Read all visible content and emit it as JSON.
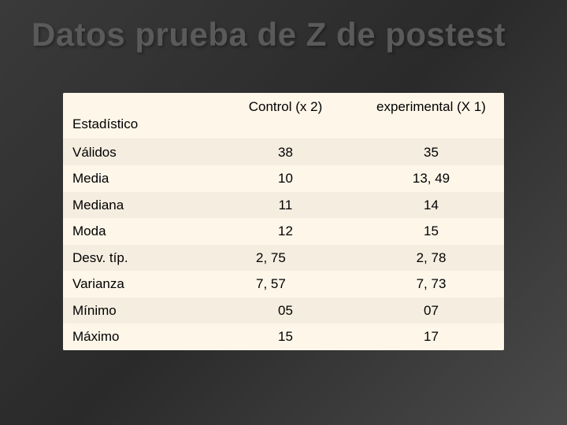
{
  "title": "Datos prueba de Z de postest",
  "table": {
    "headers": {
      "stat": "Estadístico",
      "control": "Control (x 2)",
      "experimental": "experimental (X 1)"
    },
    "rows": [
      {
        "label": "Válidos",
        "control": "38",
        "experimental": "35",
        "controlLeftAlign": false
      },
      {
        "label": "Media",
        "control": "10",
        "experimental": "13, 49",
        "controlLeftAlign": false
      },
      {
        "label": "Mediana",
        "control": "11",
        "experimental": "14",
        "controlLeftAlign": false
      },
      {
        "label": "Moda",
        "control": "12",
        "experimental": "15",
        "controlLeftAlign": false
      },
      {
        "label": "Desv. típ.",
        "control": "2, 75",
        "experimental": "2, 78",
        "controlLeftAlign": true
      },
      {
        "label": "Varianza",
        "control": "7, 57",
        "experimental": "7, 73",
        "controlLeftAlign": true
      },
      {
        "label": "Mínimo",
        "control": "05",
        "experimental": "07",
        "controlLeftAlign": false
      },
      {
        "label": "Máximo",
        "control": "15",
        "experimental": "17",
        "controlLeftAlign": false
      }
    ]
  },
  "colors": {
    "background_dark": "#3a3a3a",
    "title_color": "#5a5a5a",
    "row_odd": "#f5ede0",
    "row_even": "#fdf6e9"
  }
}
